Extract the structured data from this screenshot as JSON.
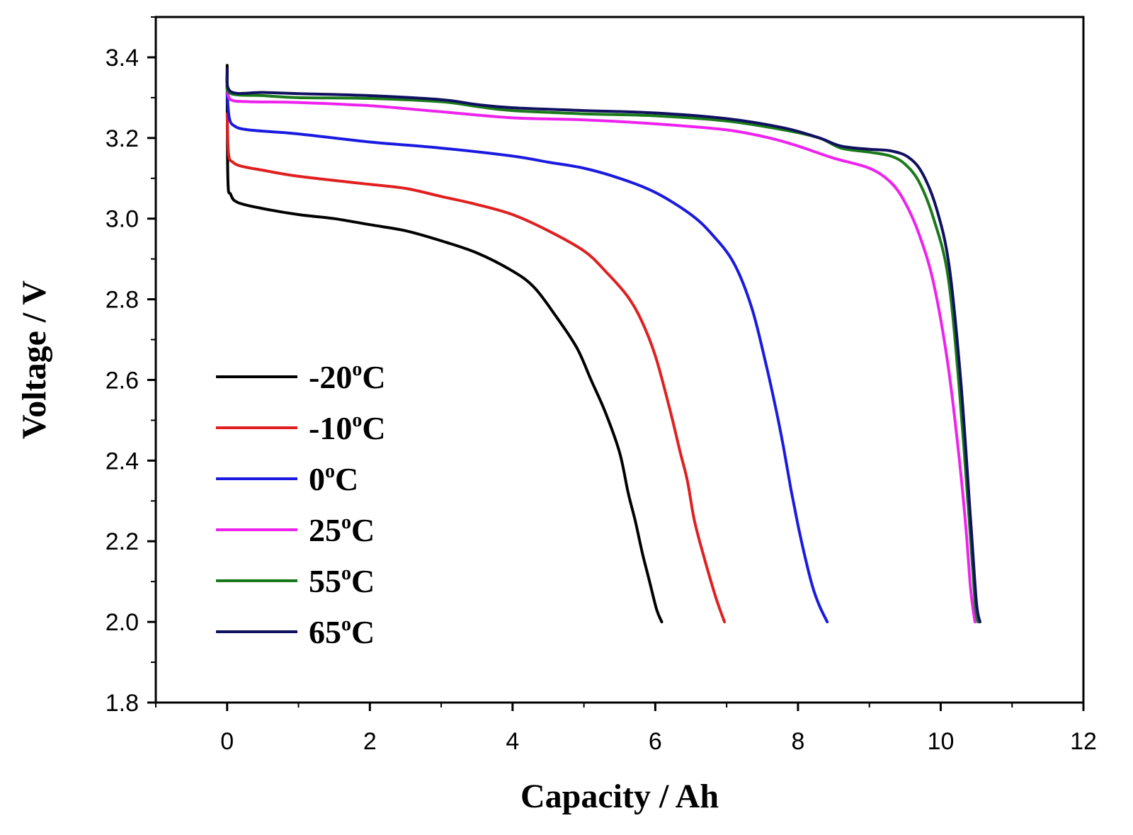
{
  "chart_data": {
    "type": "line",
    "title": "",
    "xlabel": "Capacity / Ah",
    "ylabel": "Voltage / V",
    "xlim": [
      -1,
      12
    ],
    "ylim": [
      1.8,
      3.5
    ],
    "x_ticks": [
      0,
      2,
      4,
      6,
      8,
      10,
      12
    ],
    "x_tick_labels": [
      "0",
      "2",
      "4",
      "6",
      "8",
      "10",
      "12"
    ],
    "y_ticks": [
      1.8,
      2.0,
      2.2,
      2.4,
      2.6,
      2.8,
      3.0,
      3.2,
      3.4
    ],
    "y_tick_labels": [
      "1.8",
      "2.0",
      "2.2",
      "2.4",
      "2.6",
      "2.8",
      "3.0",
      "3.2",
      "3.4"
    ],
    "grid": false,
    "legend_position": "lower-left",
    "series": [
      {
        "name": "-20°C",
        "label_main": "-20",
        "label_sup": "o",
        "label_unit": "C",
        "color": "#000000",
        "points": [
          [
            0,
            3.38
          ],
          [
            0.01,
            3.1
          ],
          [
            0.05,
            3.06
          ],
          [
            0.15,
            3.04
          ],
          [
            0.5,
            3.025
          ],
          [
            1,
            3.01
          ],
          [
            1.5,
            3.0
          ],
          [
            2,
            2.985
          ],
          [
            2.5,
            2.97
          ],
          [
            3,
            2.945
          ],
          [
            3.5,
            2.915
          ],
          [
            4,
            2.87
          ],
          [
            4.3,
            2.83
          ],
          [
            4.6,
            2.76
          ],
          [
            4.9,
            2.68
          ],
          [
            5.1,
            2.6
          ],
          [
            5.3,
            2.52
          ],
          [
            5.5,
            2.42
          ],
          [
            5.62,
            2.32
          ],
          [
            5.72,
            2.25
          ],
          [
            5.82,
            2.17
          ],
          [
            5.92,
            2.1
          ],
          [
            6.02,
            2.03
          ],
          [
            6.09,
            2.0
          ]
        ]
      },
      {
        "name": "-10°C",
        "label_main": "-10",
        "label_sup": "o",
        "label_unit": "C",
        "color": "#e02020",
        "points": [
          [
            0,
            3.26
          ],
          [
            0.02,
            3.16
          ],
          [
            0.08,
            3.14
          ],
          [
            0.2,
            3.13
          ],
          [
            0.5,
            3.12
          ],
          [
            1,
            3.105
          ],
          [
            2,
            3.085
          ],
          [
            2.5,
            3.075
          ],
          [
            3,
            3.055
          ],
          [
            3.5,
            3.035
          ],
          [
            4,
            3.01
          ],
          [
            4.5,
            2.97
          ],
          [
            5,
            2.92
          ],
          [
            5.3,
            2.87
          ],
          [
            5.6,
            2.81
          ],
          [
            5.8,
            2.75
          ],
          [
            6,
            2.66
          ],
          [
            6.2,
            2.53
          ],
          [
            6.35,
            2.42
          ],
          [
            6.45,
            2.35
          ],
          [
            6.55,
            2.25
          ],
          [
            6.7,
            2.15
          ],
          [
            6.85,
            2.06
          ],
          [
            6.97,
            2.0
          ]
        ]
      },
      {
        "name": "0°C",
        "label_main": "0",
        "label_sup": "o",
        "label_unit": "C",
        "color": "#1a1ae0",
        "points": [
          [
            0,
            3.31
          ],
          [
            0.03,
            3.25
          ],
          [
            0.1,
            3.23
          ],
          [
            0.3,
            3.22
          ],
          [
            1,
            3.21
          ],
          [
            2,
            3.19
          ],
          [
            3,
            3.175
          ],
          [
            4,
            3.155
          ],
          [
            4.5,
            3.14
          ],
          [
            5,
            3.125
          ],
          [
            5.5,
            3.1
          ],
          [
            6,
            3.065
          ],
          [
            6.5,
            3.01
          ],
          [
            6.8,
            2.96
          ],
          [
            7.1,
            2.89
          ],
          [
            7.35,
            2.78
          ],
          [
            7.55,
            2.64
          ],
          [
            7.7,
            2.52
          ],
          [
            7.8,
            2.43
          ],
          [
            7.9,
            2.33
          ],
          [
            8.0,
            2.24
          ],
          [
            8.1,
            2.16
          ],
          [
            8.2,
            2.09
          ],
          [
            8.3,
            2.04
          ],
          [
            8.41,
            2.0
          ]
        ]
      },
      {
        "name": "25°C",
        "label_main": "25",
        "label_sup": "o",
        "label_unit": "C",
        "color": "#ee22ee",
        "points": [
          [
            0,
            3.32
          ],
          [
            0.05,
            3.295
          ],
          [
            0.3,
            3.29
          ],
          [
            1,
            3.288
          ],
          [
            2,
            3.28
          ],
          [
            3,
            3.265
          ],
          [
            4,
            3.25
          ],
          [
            5,
            3.245
          ],
          [
            6,
            3.235
          ],
          [
            7,
            3.22
          ],
          [
            7.6,
            3.2
          ],
          [
            8,
            3.18
          ],
          [
            8.5,
            3.15
          ],
          [
            9,
            3.125
          ],
          [
            9.3,
            3.09
          ],
          [
            9.5,
            3.04
          ],
          [
            9.7,
            2.96
          ],
          [
            9.9,
            2.84
          ],
          [
            10.1,
            2.64
          ],
          [
            10.25,
            2.42
          ],
          [
            10.35,
            2.24
          ],
          [
            10.42,
            2.08
          ],
          [
            10.48,
            2.0
          ]
        ]
      },
      {
        "name": "55°C",
        "label_main": "55",
        "label_sup": "o",
        "label_unit": "C",
        "color": "#1a7a1a",
        "points": [
          [
            0,
            3.34
          ],
          [
            0.05,
            3.31
          ],
          [
            0.5,
            3.305
          ],
          [
            1,
            3.3
          ],
          [
            2,
            3.298
          ],
          [
            3,
            3.29
          ],
          [
            3.5,
            3.278
          ],
          [
            4,
            3.268
          ],
          [
            5,
            3.26
          ],
          [
            6,
            3.255
          ],
          [
            7,
            3.242
          ],
          [
            7.8,
            3.22
          ],
          [
            8.3,
            3.2
          ],
          [
            8.6,
            3.175
          ],
          [
            9,
            3.165
          ],
          [
            9.3,
            3.155
          ],
          [
            9.5,
            3.135
          ],
          [
            9.7,
            3.09
          ],
          [
            9.9,
            3.0
          ],
          [
            10.1,
            2.86
          ],
          [
            10.25,
            2.6
          ],
          [
            10.4,
            2.25
          ],
          [
            10.48,
            2.05
          ],
          [
            10.52,
            2.0
          ]
        ]
      },
      {
        "name": "65°C",
        "label_main": "65",
        "label_sup": "o",
        "label_unit": "C",
        "color": "#101060",
        "points": [
          [
            0,
            3.37
          ],
          [
            0.05,
            3.315
          ],
          [
            0.5,
            3.313
          ],
          [
            1,
            3.31
          ],
          [
            2,
            3.305
          ],
          [
            3,
            3.295
          ],
          [
            3.5,
            3.283
          ],
          [
            4,
            3.275
          ],
          [
            5,
            3.268
          ],
          [
            6,
            3.262
          ],
          [
            7,
            3.248
          ],
          [
            7.8,
            3.225
          ],
          [
            8.3,
            3.2
          ],
          [
            8.6,
            3.18
          ],
          [
            9,
            3.172
          ],
          [
            9.3,
            3.168
          ],
          [
            9.55,
            3.152
          ],
          [
            9.75,
            3.11
          ],
          [
            9.95,
            3.02
          ],
          [
            10.12,
            2.88
          ],
          [
            10.28,
            2.6
          ],
          [
            10.42,
            2.25
          ],
          [
            10.5,
            2.05
          ],
          [
            10.55,
            2.0
          ]
        ]
      }
    ]
  }
}
